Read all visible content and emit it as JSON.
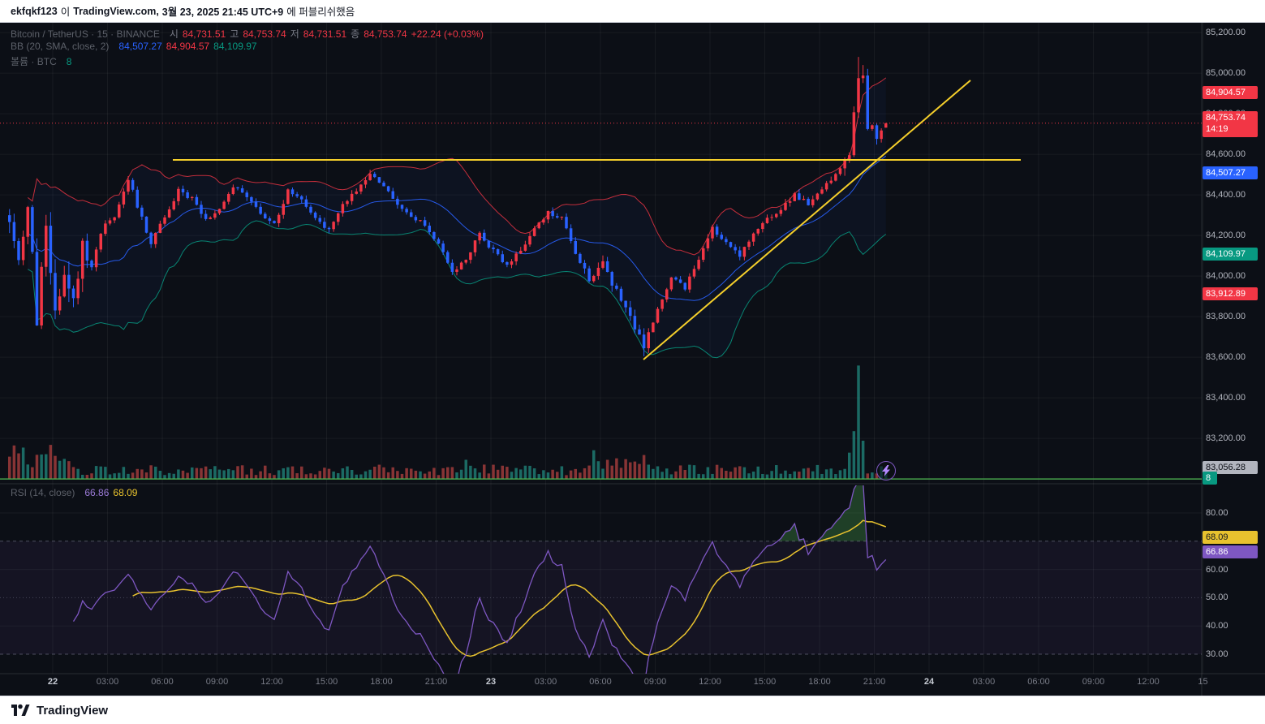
{
  "published_bar": {
    "user": "ekfqkf123",
    "connector": "이",
    "site": "TradingView.com,",
    "datetime": "3월 23, 2025 21:45 UTC+9",
    "suffix": "에 퍼블리쉬했음"
  },
  "legend": {
    "symbol": "Bitcoin / TetherUS · 15 · BINANCE",
    "ohlc": {
      "o_label": "시",
      "o": "84,731.51",
      "h_label": "고",
      "h": "84,753.74",
      "l_label": "저",
      "l": "84,731.51",
      "c_label": "종",
      "c": "84,753.74",
      "change": "+22.24 (+0.03%)"
    },
    "bb": {
      "label": "BB (20, SMA, close, 2)",
      "basis": "84,507.27",
      "upper": "84,904.57",
      "lower": "84,109.97"
    },
    "volume": {
      "label": "볼륨 · BTC",
      "value": "8"
    },
    "rsi": {
      "label": "RSI (14, close)",
      "value": "66.86",
      "ma": "68.09"
    }
  },
  "price_axis": {
    "grid": [
      {
        "label": "85,200.00",
        "value": 85200
      },
      {
        "label": "85,000.00",
        "value": 85000
      },
      {
        "label": "84,800.00",
        "value": 84800
      },
      {
        "label": "84,600.00",
        "value": 84600
      },
      {
        "label": "84,400.00",
        "value": 84400
      },
      {
        "label": "84,200.00",
        "value": 84200
      },
      {
        "label": "84,000.00",
        "value": 84000
      },
      {
        "label": "83,800.00",
        "value": 83800
      },
      {
        "label": "83,600.00",
        "value": 83600
      },
      {
        "label": "83,400.00",
        "value": 83400
      },
      {
        "label": "83,200.00",
        "value": 83200
      }
    ],
    "badges": [
      {
        "label": "84,904.57",
        "value": 84904.57,
        "bg": "red"
      },
      {
        "label": "84,753.74",
        "time": "14:19",
        "value": 84753.74,
        "bg": "red"
      },
      {
        "label": "84,507.27",
        "value": 84507.27,
        "bg": "blue"
      },
      {
        "label": "84,109.97",
        "value": 84109.97,
        "bg": "green"
      },
      {
        "label": "83,912.89",
        "value": 83912.89,
        "bg": "red"
      },
      {
        "label": "83,056.28",
        "value": 83056.28,
        "bg": "gray",
        "fg": "#0c0f16"
      },
      {
        "label": "8",
        "value": 83005,
        "bg": "green",
        "small": true
      }
    ]
  },
  "rsi_axis": {
    "grid": [
      {
        "label": "80.00",
        "value": 80
      },
      {
        "label": "60.00",
        "value": 60
      },
      {
        "label": "50.00",
        "value": 50
      },
      {
        "label": "40.00",
        "value": 40
      },
      {
        "label": "30.00",
        "value": 30
      }
    ],
    "badges": [
      {
        "label": "68.09",
        "bg": "yellow",
        "fg": "#131722"
      },
      {
        "label": "66.86",
        "bg": "purple"
      }
    ]
  },
  "time_axis": {
    "labels": [
      {
        "text": "22",
        "major": true
      },
      {
        "text": "03:00"
      },
      {
        "text": "06:00"
      },
      {
        "text": "09:00"
      },
      {
        "text": "12:00"
      },
      {
        "text": "15:00"
      },
      {
        "text": "18:00"
      },
      {
        "text": "21:00"
      },
      {
        "text": "23",
        "major": true
      },
      {
        "text": "03:00"
      },
      {
        "text": "06:00"
      },
      {
        "text": "09:00"
      },
      {
        "text": "12:00"
      },
      {
        "text": "15:00"
      },
      {
        "text": "18:00"
      },
      {
        "text": "21:00"
      },
      {
        "text": "24",
        "major": true
      },
      {
        "text": "03:00"
      },
      {
        "text": "06:00"
      },
      {
        "text": "09:00"
      },
      {
        "text": "12:00"
      },
      {
        "text": "15"
      }
    ]
  },
  "footer": {
    "brand": "TradingView"
  },
  "colors": {
    "up": "#f23645",
    "down": "#2962ff",
    "red": "#f23645",
    "blue": "#2962ff",
    "green": "#089981",
    "gray": "#b2b5be",
    "yellow": "#e8c22e",
    "purple": "#7e57c2",
    "accent_line": "#f5cf2b",
    "hline_green": "#4caf50",
    "vol_up": "rgba(38,166,154,0.6)",
    "vol_down": "rgba(239,83,80,0.55)",
    "axis_text": "#b2b5be",
    "grid": "rgba(255,255,255,0.05)"
  },
  "chart_data": {
    "type": "candlestick",
    "title": "Bitcoin / TetherUS",
    "exchange": "BINANCE",
    "interval": "15",
    "bars_rendered": 193,
    "last_bar": {
      "open": 84731.51,
      "high": 84753.74,
      "low": 84731.51,
      "close": 84753.74,
      "change": 22.24,
      "change_pct": "+0.03%"
    },
    "volume_last": 8,
    "price_range_visible": [
      83020,
      85320
    ],
    "time_labels": [
      "22",
      "03:00",
      "06:00",
      "09:00",
      "12:00",
      "15:00",
      "18:00",
      "21:00",
      "23",
      "03:00",
      "06:00",
      "09:00",
      "12:00",
      "15:00",
      "18:00",
      "21:00",
      "24",
      "03:00",
      "06:00",
      "09:00",
      "12:00",
      "15"
    ],
    "price_anchors": [
      [
        0,
        84300
      ],
      [
        2,
        84050
      ],
      [
        4,
        84380
      ],
      [
        6,
        83780
      ],
      [
        8,
        84280
      ],
      [
        10,
        83820
      ],
      [
        12,
        84000
      ],
      [
        14,
        83900
      ],
      [
        16,
        84150
      ],
      [
        18,
        84050
      ],
      [
        20,
        84220
      ],
      [
        23,
        84300
      ],
      [
        26,
        84480
      ],
      [
        28,
        84350
      ],
      [
        31,
        84150
      ],
      [
        34,
        84300
      ],
      [
        37,
        84420
      ],
      [
        40,
        84380
      ],
      [
        43,
        84280
      ],
      [
        46,
        84320
      ],
      [
        49,
        84440
      ],
      [
        52,
        84400
      ],
      [
        55,
        84300
      ],
      [
        58,
        84260
      ],
      [
        61,
        84420
      ],
      [
        64,
        84380
      ],
      [
        67,
        84280
      ],
      [
        70,
        84220
      ],
      [
        73,
        84350
      ],
      [
        76,
        84420
      ],
      [
        79,
        84500
      ],
      [
        82,
        84440
      ],
      [
        85,
        84350
      ],
      [
        88,
        84300
      ],
      [
        91,
        84260
      ],
      [
        94,
        84160
      ],
      [
        97,
        84020
      ],
      [
        100,
        84080
      ],
      [
        103,
        84220
      ],
      [
        106,
        84120
      ],
      [
        109,
        84060
      ],
      [
        112,
        84130
      ],
      [
        115,
        84230
      ],
      [
        118,
        84320
      ],
      [
        121,
        84280
      ],
      [
        124,
        84120
      ],
      [
        127,
        83980
      ],
      [
        130,
        84060
      ],
      [
        133,
        83920
      ],
      [
        136,
        83800
      ],
      [
        139,
        83650
      ],
      [
        142,
        83830
      ],
      [
        145,
        84000
      ],
      [
        148,
        83940
      ],
      [
        151,
        84090
      ],
      [
        154,
        84240
      ],
      [
        157,
        84170
      ],
      [
        160,
        84100
      ],
      [
        163,
        84200
      ],
      [
        166,
        84280
      ],
      [
        169,
        84330
      ],
      [
        172,
        84400
      ],
      [
        175,
        84360
      ],
      [
        178,
        84430
      ],
      [
        181,
        84500
      ],
      [
        184,
        84600
      ],
      [
        186,
        84980
      ],
      [
        187,
        85010
      ],
      [
        188,
        84700
      ],
      [
        189,
        84760
      ],
      [
        190,
        84690
      ],
      [
        191,
        84735
      ],
      [
        192,
        84753.74
      ]
    ],
    "volume_anchors": {
      "100": 16,
      "128": 24,
      "139": 20,
      "184": 22,
      "185": 40,
      "186": 95,
      "187": 32
    },
    "indicators": [
      {
        "name": "Bollinger Bands",
        "params": "(20, SMA, close, 2)",
        "basis": 84507.27,
        "upper": 84904.57,
        "lower": 84109.97
      },
      {
        "name": "RSI",
        "params": "(14, close)",
        "value": 66.86,
        "ma": 68.09,
        "levels": [
          70,
          50,
          30
        ]
      }
    ],
    "drawings": [
      {
        "type": "horizontal_segment",
        "price": 84577,
        "color": "yellow"
      },
      {
        "type": "trendline",
        "from_price": 83590,
        "to_price": 84990,
        "color": "yellow"
      },
      {
        "type": "horizontal_line",
        "price": 83000,
        "color": "green"
      }
    ]
  }
}
